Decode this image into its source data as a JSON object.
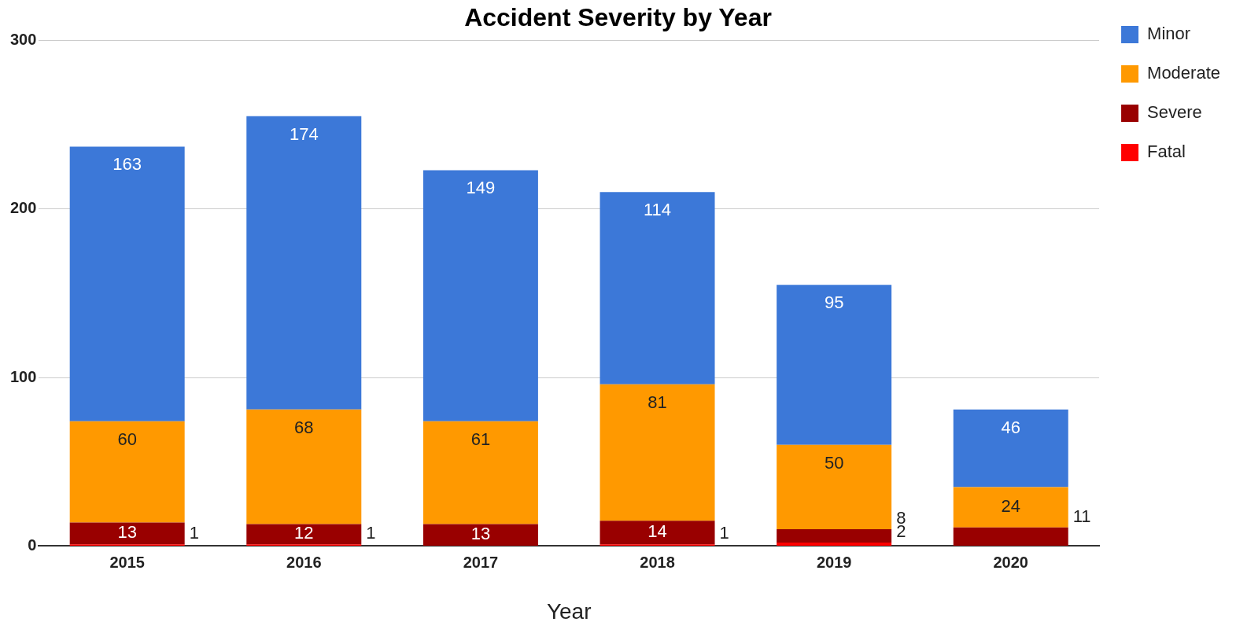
{
  "chart_data": {
    "type": "bar",
    "title": "Accident Severity by Year",
    "xlabel": "Year",
    "categories": [
      "2015",
      "2016",
      "2017",
      "2018",
      "2019",
      "2020"
    ],
    "stacked": true,
    "series": [
      {
        "name": "Fatal",
        "color": "#ff0000",
        "values": [
          1,
          1,
          null,
          1,
          2,
          null
        ]
      },
      {
        "name": "Severe",
        "color": "#990000",
        "values": [
          13,
          12,
          13,
          14,
          8,
          11
        ]
      },
      {
        "name": "Moderate",
        "color": "#ff9900",
        "values": [
          60,
          68,
          61,
          81,
          50,
          24
        ]
      },
      {
        "name": "Minor",
        "color": "#3c78d8",
        "values": [
          163,
          174,
          149,
          114,
          95,
          46
        ]
      }
    ],
    "ylim": [
      0,
      300
    ],
    "yticks": [
      0,
      100,
      200,
      300
    ],
    "grid": "y",
    "legend": "top right",
    "data_labels": true
  }
}
